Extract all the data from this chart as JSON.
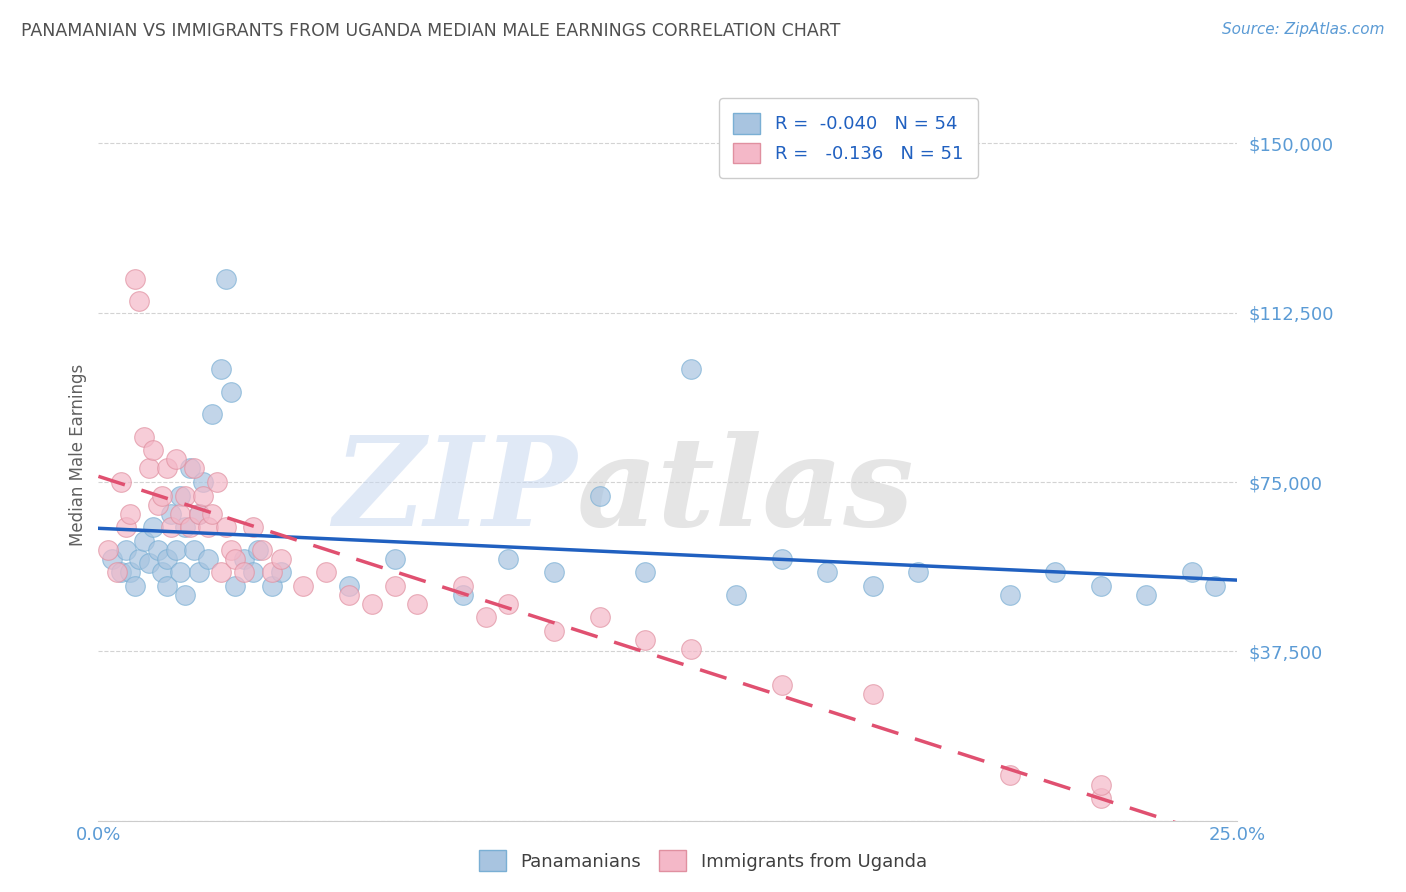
{
  "title": "PANAMANIAN VS IMMIGRANTS FROM UGANDA MEDIAN MALE EARNINGS CORRELATION CHART",
  "source": "Source: ZipAtlas.com",
  "ylabel": "Median Male Earnings",
  "yticks": [
    0,
    37500,
    75000,
    112500,
    150000
  ],
  "ytick_labels": [
    "",
    "$37,500",
    "$75,000",
    "$112,500",
    "$150,000"
  ],
  "xlim": [
    0.0,
    0.25
  ],
  "ylim": [
    0,
    162000
  ],
  "watermark_text": "ZIP",
  "watermark_text2": "atlas",
  "title_color": "#505050",
  "source_color": "#5b9bd5",
  "ylabel_color": "#606060",
  "tick_label_color": "#5b9bd5",
  "grid_color": "#c8c8c8",
  "background_color": "#ffffff",
  "blue_color": "#a8c4e0",
  "blue_edge": "#7aafd4",
  "blue_line_color": "#2060c0",
  "pink_color": "#f4b8c8",
  "pink_edge": "#e090a0",
  "pink_line_color": "#e05070",
  "legend1_r": "R =  -0.040",
  "legend1_n": "N = 54",
  "legend2_r": "R =   -0.136",
  "legend2_n": "N = 51",
  "legend_text_color": "#2060c0",
  "bottom_legend_color": "#404040",
  "blue_scatter_x": [
    0.003,
    0.005,
    0.006,
    0.007,
    0.008,
    0.009,
    0.01,
    0.011,
    0.012,
    0.013,
    0.014,
    0.015,
    0.015,
    0.016,
    0.017,
    0.018,
    0.018,
    0.019,
    0.019,
    0.02,
    0.021,
    0.022,
    0.022,
    0.023,
    0.024,
    0.025,
    0.027,
    0.028,
    0.029,
    0.03,
    0.032,
    0.034,
    0.035,
    0.038,
    0.04,
    0.055,
    0.065,
    0.08,
    0.09,
    0.1,
    0.11,
    0.12,
    0.13,
    0.14,
    0.15,
    0.16,
    0.17,
    0.18,
    0.2,
    0.21,
    0.22,
    0.23,
    0.24,
    0.245
  ],
  "blue_scatter_y": [
    58000,
    55000,
    60000,
    55000,
    52000,
    58000,
    62000,
    57000,
    65000,
    60000,
    55000,
    58000,
    52000,
    68000,
    60000,
    55000,
    72000,
    65000,
    50000,
    78000,
    60000,
    55000,
    68000,
    75000,
    58000,
    90000,
    100000,
    120000,
    95000,
    52000,
    58000,
    55000,
    60000,
    52000,
    55000,
    52000,
    58000,
    50000,
    58000,
    55000,
    72000,
    55000,
    100000,
    50000,
    58000,
    55000,
    52000,
    55000,
    50000,
    55000,
    52000,
    50000,
    55000,
    52000
  ],
  "pink_scatter_x": [
    0.002,
    0.004,
    0.005,
    0.006,
    0.007,
    0.008,
    0.009,
    0.01,
    0.011,
    0.012,
    0.013,
    0.014,
    0.015,
    0.016,
    0.017,
    0.018,
    0.019,
    0.02,
    0.021,
    0.022,
    0.023,
    0.024,
    0.025,
    0.026,
    0.027,
    0.028,
    0.029,
    0.03,
    0.032,
    0.034,
    0.036,
    0.038,
    0.04,
    0.045,
    0.05,
    0.055,
    0.06,
    0.065,
    0.07,
    0.08,
    0.085,
    0.09,
    0.1,
    0.11,
    0.12,
    0.13,
    0.15,
    0.17,
    0.2,
    0.22,
    0.22
  ],
  "pink_scatter_y": [
    60000,
    55000,
    75000,
    65000,
    68000,
    120000,
    115000,
    85000,
    78000,
    82000,
    70000,
    72000,
    78000,
    65000,
    80000,
    68000,
    72000,
    65000,
    78000,
    68000,
    72000,
    65000,
    68000,
    75000,
    55000,
    65000,
    60000,
    58000,
    55000,
    65000,
    60000,
    55000,
    58000,
    52000,
    55000,
    50000,
    48000,
    52000,
    48000,
    52000,
    45000,
    48000,
    42000,
    45000,
    40000,
    38000,
    30000,
    28000,
    10000,
    5000,
    8000
  ]
}
